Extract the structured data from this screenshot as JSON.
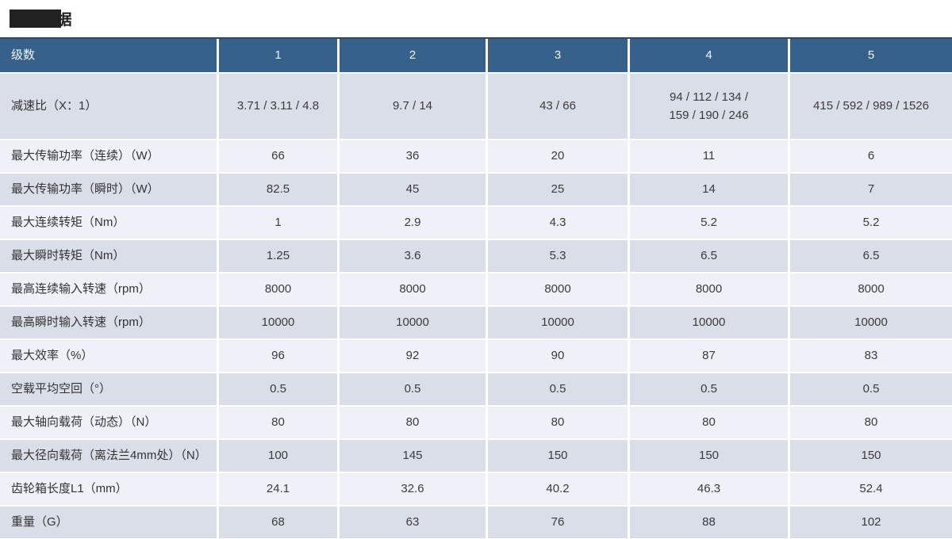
{
  "page": {
    "title": "技术数据"
  },
  "colors": {
    "header_bg": "#35618a",
    "header_top_border": "#2b4c69",
    "header_text": "#f2f5f8",
    "row_dark_bg": "#d9dee9",
    "row_light_bg": "#eef1f8",
    "cell_text": "#3b3b3b",
    "redaction": "#222222"
  },
  "table": {
    "header": {
      "label": "级数",
      "columns": [
        "1",
        "2",
        "3",
        "4",
        "5"
      ]
    },
    "rows": [
      {
        "label": "减速比（X：1）",
        "tall": true,
        "values": [
          "3.71 / 3.11 / 4.8",
          "9.7 / 14",
          "43 / 66",
          "94 / 112 / 134 /\n159 / 190 / 246",
          "415 / 592 / 989 / 1526"
        ]
      },
      {
        "label": "最大传输功率（连续）（W）",
        "values": [
          "66",
          "36",
          "20",
          "11",
          "6"
        ]
      },
      {
        "label": "最大传输功率（瞬时）（W）",
        "values": [
          "82.5",
          "45",
          "25",
          "14",
          "7"
        ]
      },
      {
        "label": "最大连续转矩（Nm）",
        "values": [
          "1",
          "2.9",
          "4.3",
          "5.2",
          "5.2"
        ]
      },
      {
        "label": "最大瞬时转矩（Nm）",
        "values": [
          "1.25",
          "3.6",
          "5.3",
          "6.5",
          "6.5"
        ]
      },
      {
        "label": "最高连续输入转速（rpm）",
        "values": [
          "8000",
          "8000",
          "8000",
          "8000",
          "8000"
        ]
      },
      {
        "label": "最高瞬时输入转速（rpm）",
        "values": [
          "10000",
          "10000",
          "10000",
          "10000",
          "10000"
        ]
      },
      {
        "label": "最大效率（%）",
        "values": [
          "96",
          "92",
          "90",
          "87",
          "83"
        ]
      },
      {
        "label": "空载平均空回（°）",
        "values": [
          "0.5",
          "0.5",
          "0.5",
          "0.5",
          "0.5"
        ]
      },
      {
        "label": "最大轴向载荷（动态）（N）",
        "values": [
          "80",
          "80",
          "80",
          "80",
          "80"
        ]
      },
      {
        "label": "最大径向载荷（离法兰4mm处）（N）",
        "values": [
          "100",
          "145",
          "150",
          "150",
          "150"
        ]
      },
      {
        "label": "齿轮箱长度L1（mm）",
        "values": [
          "24.1",
          "32.6",
          "40.2",
          "46.3",
          "52.4"
        ]
      },
      {
        "label": "重量（G）",
        "values": [
          "68",
          "63",
          "76",
          "88",
          "102"
        ]
      }
    ]
  }
}
